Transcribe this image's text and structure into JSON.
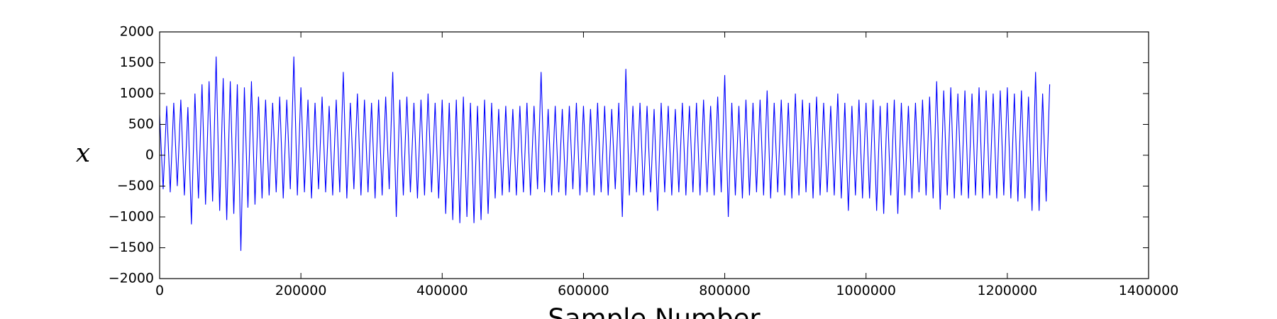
{
  "chart_data": {
    "type": "line",
    "xlabel": "Sample Number",
    "ylabel": "x",
    "xlim": [
      0,
      1400000
    ],
    "xticks": [
      0,
      200000,
      400000,
      600000,
      800000,
      1000000,
      1200000,
      1400000
    ],
    "ylim": [
      -2000,
      2000
    ],
    "yticks": [
      {
        "value": -2000,
        "label": "−2000"
      },
      {
        "value": -1500,
        "label": "−1500"
      },
      {
        "value": -1000,
        "label": "−1000"
      },
      {
        "value": -500,
        "label": "−500"
      },
      0,
      500,
      1000,
      1500,
      2000
    ],
    "grid": false,
    "x": [
      0,
      5000,
      10000,
      15000,
      20000,
      25000,
      30000,
      35000,
      40000,
      45000,
      50000,
      55000,
      60000,
      65000,
      70000,
      75000,
      80000,
      85000,
      90000,
      95000,
      100000,
      105000,
      110000,
      115000,
      120000,
      125000,
      130000,
      135000,
      140000,
      145000,
      150000,
      155000,
      160000,
      165000,
      170000,
      175000,
      180000,
      185000,
      190000,
      195000,
      200000,
      205000,
      210000,
      215000,
      220000,
      225000,
      230000,
      235000,
      240000,
      245000,
      250000,
      255000,
      260000,
      265000,
      270000,
      275000,
      280000,
      285000,
      290000,
      295000,
      300000,
      305000,
      310000,
      315000,
      320000,
      325000,
      330000,
      335000,
      340000,
      345000,
      350000,
      355000,
      360000,
      365000,
      370000,
      375000,
      380000,
      385000,
      390000,
      395000,
      400000,
      405000,
      410000,
      415000,
      420000,
      425000,
      430000,
      435000,
      440000,
      445000,
      450000,
      455000,
      460000,
      465000,
      470000,
      475000,
      480000,
      485000,
      490000,
      495000,
      500000,
      505000,
      510000,
      515000,
      520000,
      525000,
      530000,
      535000,
      540000,
      545000,
      550000,
      555000,
      560000,
      565000,
      570000,
      575000,
      580000,
      585000,
      590000,
      595000,
      600000,
      605000,
      610000,
      615000,
      620000,
      625000,
      630000,
      635000,
      640000,
      645000,
      650000,
      655000,
      660000,
      665000,
      670000,
      675000,
      680000,
      685000,
      690000,
      695000,
      700000,
      705000,
      710000,
      715000,
      720000,
      725000,
      730000,
      735000,
      740000,
      745000,
      750000,
      755000,
      760000,
      765000,
      770000,
      775000,
      780000,
      785000,
      790000,
      795000,
      800000,
      805000,
      810000,
      815000,
      820000,
      825000,
      830000,
      835000,
      840000,
      845000,
      850000,
      855000,
      860000,
      865000,
      870000,
      875000,
      880000,
      885000,
      890000,
      895000,
      900000,
      905000,
      910000,
      915000,
      920000,
      925000,
      930000,
      935000,
      940000,
      945000,
      950000,
      955000,
      960000,
      965000,
      970000,
      975000,
      980000,
      985000,
      990000,
      995000,
      1000000,
      1005000,
      1010000,
      1015000,
      1020000,
      1025000,
      1030000,
      1035000,
      1040000,
      1045000,
      1050000,
      1055000,
      1060000,
      1065000,
      1070000,
      1075000,
      1080000,
      1085000,
      1090000,
      1095000,
      1100000,
      1105000,
      1110000,
      1115000,
      1120000,
      1125000,
      1130000,
      1135000,
      1140000,
      1145000,
      1150000,
      1155000,
      1160000,
      1165000,
      1170000,
      1175000,
      1180000,
      1185000,
      1190000,
      1195000,
      1200000,
      1205000,
      1210000,
      1215000,
      1220000,
      1225000,
      1230000,
      1235000,
      1240000,
      1245000,
      1250000,
      1255000,
      1260000
    ],
    "series": [
      {
        "color": "#0000ff",
        "values": [
          650,
          -550,
          800,
          -600,
          850,
          -500,
          900,
          -650,
          780,
          -1120,
          1000,
          -700,
          1150,
          -800,
          1200,
          -750,
          1600,
          -900,
          1250,
          -1050,
          1200,
          -950,
          1150,
          -1550,
          1100,
          -850,
          1200,
          -800,
          950,
          -700,
          900,
          -650,
          850,
          -600,
          950,
          -700,
          900,
          -550,
          1600,
          -650,
          1100,
          -600,
          900,
          -700,
          850,
          -550,
          950,
          -600,
          800,
          -650,
          900,
          -600,
          1350,
          -700,
          850,
          -550,
          1000,
          -650,
          900,
          -600,
          850,
          -700,
          900,
          -650,
          950,
          -550,
          1350,
          -1000,
          900,
          -650,
          950,
          -600,
          850,
          -700,
          900,
          -650,
          1000,
          -600,
          850,
          -700,
          900,
          -950,
          850,
          -1050,
          900,
          -1100,
          950,
          -1000,
          850,
          -1100,
          800,
          -1050,
          900,
          -950,
          850,
          -700,
          750,
          -650,
          800,
          -600,
          750,
          -650,
          800,
          -600,
          850,
          -650,
          800,
          -550,
          1350,
          -600,
          750,
          -650,
          800,
          -600,
          750,
          -650,
          800,
          -550,
          850,
          -650,
          800,
          -600,
          750,
          -650,
          850,
          -600,
          800,
          -650,
          750,
          -550,
          850,
          -1000,
          1400,
          -650,
          800,
          -600,
          850,
          -650,
          800,
          -600,
          750,
          -900,
          850,
          -600,
          800,
          -650,
          750,
          -600,
          850,
          -650,
          800,
          -600,
          850,
          -650,
          900,
          -600,
          800,
          -650,
          950,
          -600,
          1300,
          -1000,
          850,
          -650,
          800,
          -700,
          900,
          -650,
          850,
          -600,
          900,
          -650,
          1050,
          -700,
          850,
          -600,
          900,
          -650,
          850,
          -700,
          1000,
          -650,
          900,
          -600,
          850,
          -700,
          950,
          -650,
          850,
          -600,
          800,
          -650,
          1000,
          -700,
          850,
          -900,
          800,
          -650,
          900,
          -700,
          850,
          -700,
          900,
          -900,
          800,
          -950,
          850,
          -650,
          900,
          -950,
          850,
          -650,
          800,
          -700,
          850,
          -600,
          900,
          -650,
          950,
          -700,
          1200,
          -880,
          1050,
          -650,
          1100,
          -700,
          1000,
          -650,
          1050,
          -700,
          1000,
          -650,
          1100,
          -700,
          1050,
          -650,
          1000,
          -700,
          1050,
          -650,
          1100,
          -700,
          1000,
          -750,
          1050,
          -700,
          950,
          -900,
          1350,
          -900,
          1000,
          -750,
          1150
        ]
      }
    ]
  }
}
